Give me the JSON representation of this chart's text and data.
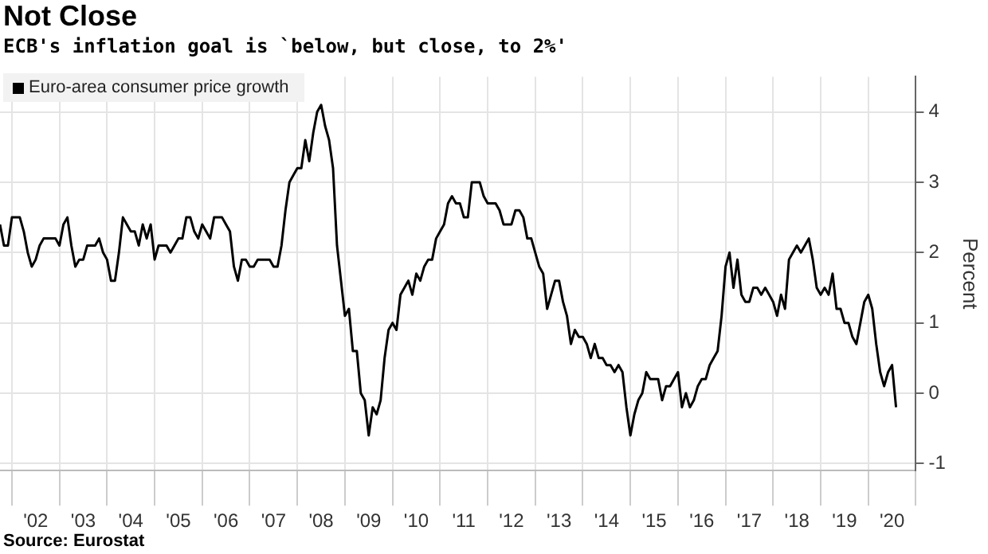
{
  "chart_data": {
    "type": "line",
    "title": "Not Close",
    "subtitle": "ECB's inflation goal is `below, but close, to 2%'",
    "ylabel": "Percent",
    "annotations": [
      "Source: Eurostat"
    ],
    "legend": "top left",
    "grid": true,
    "xlim": [
      "2001-10",
      "2021-01"
    ],
    "ylim": [
      -1.1,
      4.5
    ],
    "yticks": [
      -1,
      0,
      1,
      2,
      3,
      4
    ],
    "xticks": [
      {
        "value": "2002-01",
        "label": null
      },
      {
        "value": "2002-07",
        "label": "'02"
      },
      {
        "value": "2003-01",
        "label": null
      },
      {
        "value": "2003-07",
        "label": "'03"
      },
      {
        "value": "2004-01",
        "label": null
      },
      {
        "value": "2004-07",
        "label": "'04"
      },
      {
        "value": "2005-01",
        "label": null
      },
      {
        "value": "2005-07",
        "label": "'05"
      },
      {
        "value": "2006-01",
        "label": null
      },
      {
        "value": "2006-07",
        "label": "'06"
      },
      {
        "value": "2007-01",
        "label": null
      },
      {
        "value": "2007-07",
        "label": "'07"
      },
      {
        "value": "2008-01",
        "label": null
      },
      {
        "value": "2008-07",
        "label": "'08"
      },
      {
        "value": "2009-01",
        "label": null
      },
      {
        "value": "2009-07",
        "label": "'09"
      },
      {
        "value": "2010-01",
        "label": null
      },
      {
        "value": "2010-07",
        "label": "'10"
      },
      {
        "value": "2011-01",
        "label": null
      },
      {
        "value": "2011-07",
        "label": "'11"
      },
      {
        "value": "2012-01",
        "label": null
      },
      {
        "value": "2012-07",
        "label": "'12"
      },
      {
        "value": "2013-01",
        "label": null
      },
      {
        "value": "2013-07",
        "label": "'13"
      },
      {
        "value": "2014-01",
        "label": null
      },
      {
        "value": "2014-07",
        "label": "'14"
      },
      {
        "value": "2015-01",
        "label": null
      },
      {
        "value": "2015-07",
        "label": "'15"
      },
      {
        "value": "2016-01",
        "label": null
      },
      {
        "value": "2016-07",
        "label": "'16"
      },
      {
        "value": "2017-01",
        "label": null
      },
      {
        "value": "2017-07",
        "label": "'17"
      },
      {
        "value": "2018-01",
        "label": null
      },
      {
        "value": "2018-07",
        "label": "'18"
      },
      {
        "value": "2019-01",
        "label": null
      },
      {
        "value": "2019-07",
        "label": "'19"
      },
      {
        "value": "2020-01",
        "label": null
      },
      {
        "value": "2020-07",
        "label": "'20"
      },
      {
        "value": "2021-01",
        "label": null
      }
    ],
    "x": [
      "2001-10",
      "2001-11",
      "2001-12",
      "2002-01",
      "2002-02",
      "2002-03",
      "2002-04",
      "2002-05",
      "2002-06",
      "2002-07",
      "2002-08",
      "2002-09",
      "2002-10",
      "2002-11",
      "2002-12",
      "2003-01",
      "2003-02",
      "2003-03",
      "2003-04",
      "2003-05",
      "2003-06",
      "2003-07",
      "2003-08",
      "2003-09",
      "2003-10",
      "2003-11",
      "2003-12",
      "2004-01",
      "2004-02",
      "2004-03",
      "2004-04",
      "2004-05",
      "2004-06",
      "2004-07",
      "2004-08",
      "2004-09",
      "2004-10",
      "2004-11",
      "2004-12",
      "2005-01",
      "2005-02",
      "2005-03",
      "2005-04",
      "2005-05",
      "2005-06",
      "2005-07",
      "2005-08",
      "2005-09",
      "2005-10",
      "2005-11",
      "2005-12",
      "2006-01",
      "2006-02",
      "2006-03",
      "2006-04",
      "2006-05",
      "2006-06",
      "2006-07",
      "2006-08",
      "2006-09",
      "2006-10",
      "2006-11",
      "2006-12",
      "2007-01",
      "2007-02",
      "2007-03",
      "2007-04",
      "2007-05",
      "2007-06",
      "2007-07",
      "2007-08",
      "2007-09",
      "2007-10",
      "2007-11",
      "2007-12",
      "2008-01",
      "2008-02",
      "2008-03",
      "2008-04",
      "2008-05",
      "2008-06",
      "2008-07",
      "2008-08",
      "2008-09",
      "2008-10",
      "2008-11",
      "2008-12",
      "2009-01",
      "2009-02",
      "2009-03",
      "2009-04",
      "2009-05",
      "2009-06",
      "2009-07",
      "2009-08",
      "2009-09",
      "2009-10",
      "2009-11",
      "2009-12",
      "2010-01",
      "2010-02",
      "2010-03",
      "2010-04",
      "2010-05",
      "2010-06",
      "2010-07",
      "2010-08",
      "2010-09",
      "2010-10",
      "2010-11",
      "2010-12",
      "2011-01",
      "2011-02",
      "2011-03",
      "2011-04",
      "2011-05",
      "2011-06",
      "2011-07",
      "2011-08",
      "2011-09",
      "2011-10",
      "2011-11",
      "2011-12",
      "2012-01",
      "2012-02",
      "2012-03",
      "2012-04",
      "2012-05",
      "2012-06",
      "2012-07",
      "2012-08",
      "2012-09",
      "2012-10",
      "2012-11",
      "2012-12",
      "2013-01",
      "2013-02",
      "2013-03",
      "2013-04",
      "2013-05",
      "2013-06",
      "2013-07",
      "2013-08",
      "2013-09",
      "2013-10",
      "2013-11",
      "2013-12",
      "2014-01",
      "2014-02",
      "2014-03",
      "2014-04",
      "2014-05",
      "2014-06",
      "2014-07",
      "2014-08",
      "2014-09",
      "2014-10",
      "2014-11",
      "2014-12",
      "2015-01",
      "2015-02",
      "2015-03",
      "2015-04",
      "2015-05",
      "2015-06",
      "2015-07",
      "2015-08",
      "2015-09",
      "2015-10",
      "2015-11",
      "2015-12",
      "2016-01",
      "2016-02",
      "2016-03",
      "2016-04",
      "2016-05",
      "2016-06",
      "2016-07",
      "2016-08",
      "2016-09",
      "2016-10",
      "2016-11",
      "2016-12",
      "2017-01",
      "2017-02",
      "2017-03",
      "2017-04",
      "2017-05",
      "2017-06",
      "2017-07",
      "2017-08",
      "2017-09",
      "2017-10",
      "2017-11",
      "2017-12",
      "2018-01",
      "2018-02",
      "2018-03",
      "2018-04",
      "2018-05",
      "2018-06",
      "2018-07",
      "2018-08",
      "2018-09",
      "2018-10",
      "2018-11",
      "2018-12",
      "2019-01",
      "2019-02",
      "2019-03",
      "2019-04",
      "2019-05",
      "2019-06",
      "2019-07",
      "2019-08",
      "2019-09",
      "2019-10",
      "2019-11",
      "2019-12",
      "2020-01",
      "2020-02",
      "2020-03",
      "2020-04",
      "2020-05",
      "2020-06",
      "2020-07",
      "2020-08"
    ],
    "series": [
      {
        "name": "Euro-area consumer price growth",
        "color": "#000000",
        "values": [
          2.4,
          2.1,
          2.1,
          2.5,
          2.5,
          2.5,
          2.3,
          2.0,
          1.8,
          1.9,
          2.1,
          2.2,
          2.2,
          2.2,
          2.2,
          2.1,
          2.4,
          2.5,
          2.1,
          1.8,
          1.9,
          1.9,
          2.1,
          2.1,
          2.1,
          2.2,
          2.0,
          1.9,
          1.6,
          1.6,
          2.0,
          2.5,
          2.4,
          2.3,
          2.3,
          2.1,
          2.4,
          2.2,
          2.4,
          1.9,
          2.1,
          2.1,
          2.1,
          2.0,
          2.1,
          2.2,
          2.2,
          2.5,
          2.5,
          2.3,
          2.2,
          2.4,
          2.3,
          2.2,
          2.5,
          2.5,
          2.5,
          2.4,
          2.3,
          1.8,
          1.6,
          1.9,
          1.9,
          1.8,
          1.8,
          1.9,
          1.9,
          1.9,
          1.9,
          1.8,
          1.8,
          2.1,
          2.6,
          3.0,
          3.1,
          3.2,
          3.2,
          3.6,
          3.3,
          3.7,
          4.0,
          4.1,
          3.8,
          3.6,
          3.2,
          2.1,
          1.6,
          1.1,
          1.2,
          0.6,
          0.6,
          0.0,
          -0.1,
          -0.6,
          -0.2,
          -0.3,
          -0.1,
          0.5,
          0.9,
          1.0,
          0.9,
          1.4,
          1.5,
          1.6,
          1.4,
          1.7,
          1.6,
          1.8,
          1.9,
          1.9,
          2.2,
          2.3,
          2.4,
          2.7,
          2.8,
          2.7,
          2.7,
          2.5,
          2.5,
          3.0,
          3.0,
          3.0,
          2.8,
          2.7,
          2.7,
          2.7,
          2.6,
          2.4,
          2.4,
          2.4,
          2.6,
          2.6,
          2.5,
          2.2,
          2.2,
          2.0,
          1.8,
          1.7,
          1.2,
          1.4,
          1.6,
          1.6,
          1.3,
          1.1,
          0.7,
          0.9,
          0.8,
          0.8,
          0.7,
          0.5,
          0.7,
          0.5,
          0.5,
          0.4,
          0.4,
          0.3,
          0.4,
          0.3,
          -0.2,
          -0.6,
          -0.3,
          -0.1,
          0.0,
          0.3,
          0.2,
          0.2,
          0.2,
          -0.1,
          0.1,
          0.1,
          0.2,
          0.3,
          -0.2,
          0.0,
          -0.2,
          -0.1,
          0.1,
          0.2,
          0.2,
          0.4,
          0.5,
          0.6,
          1.1,
          1.8,
          2.0,
          1.5,
          1.9,
          1.4,
          1.3,
          1.3,
          1.5,
          1.5,
          1.4,
          1.5,
          1.4,
          1.3,
          1.1,
          1.4,
          1.2,
          1.9,
          2.0,
          2.1,
          2.0,
          2.1,
          2.2,
          1.9,
          1.5,
          1.4,
          1.5,
          1.4,
          1.7,
          1.2,
          1.2,
          1.0,
          1.0,
          0.8,
          0.7,
          1.0,
          1.3,
          1.4,
          1.2,
          0.7,
          0.3,
          0.1,
          0.3,
          0.4,
          -0.2
        ]
      }
    ]
  }
}
